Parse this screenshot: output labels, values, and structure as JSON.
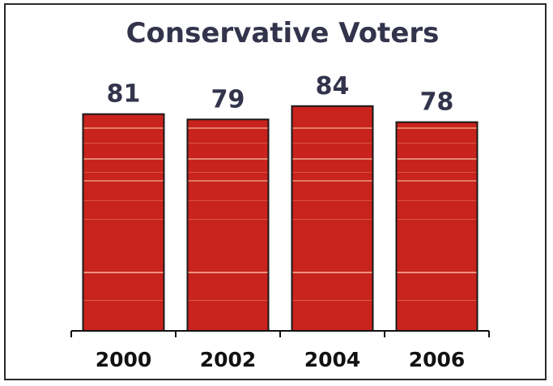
{
  "chart_data": {
    "type": "bar",
    "title": "Conservative Voters",
    "categories": [
      "2000",
      "2002",
      "2004",
      "2006"
    ],
    "values": [
      81,
      79,
      84,
      78
    ],
    "data_labels": [
      "81",
      "79",
      "84",
      "78"
    ],
    "ylim": [
      0,
      100
    ],
    "grid": false,
    "legend": "none",
    "bar_color": "#c8231c",
    "bar_edge_color": "#1a1a1a",
    "text_color": "#33344c"
  }
}
